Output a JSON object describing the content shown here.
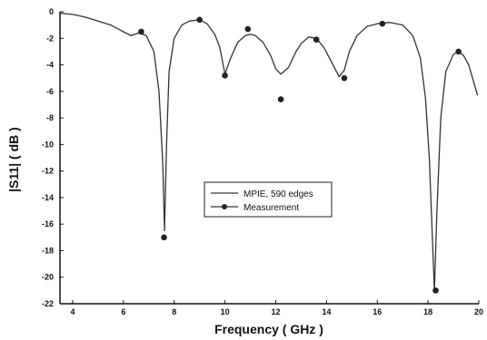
{
  "chart_data": {
    "type": "line",
    "title": "",
    "xlabel": "Frequency ( GHz )",
    "ylabel": "|S11| ( dB )",
    "xlim": [
      3.5,
      20
    ],
    "ylim": [
      -22,
      0
    ],
    "x_ticks": [
      4,
      6,
      8,
      10,
      12,
      14,
      16,
      18,
      20
    ],
    "y_ticks": [
      0,
      -2,
      -4,
      -6,
      -8,
      -10,
      -12,
      -14,
      -16,
      -18,
      -20,
      -22
    ],
    "grid": false,
    "legend_position": "center",
    "series": [
      {
        "name": "MPIE, 590 edges",
        "style": "line",
        "color": "#333333",
        "x": [
          3.5,
          4.0,
          4.5,
          5.0,
          5.5,
          6.0,
          6.3,
          6.6,
          6.9,
          7.2,
          7.4,
          7.55,
          7.62,
          7.7,
          7.8,
          8.0,
          8.3,
          8.6,
          9.0,
          9.3,
          9.6,
          9.8,
          10.0,
          10.2,
          10.5,
          10.8,
          11.0,
          11.2,
          11.5,
          11.8,
          12.0,
          12.2,
          12.5,
          12.8,
          13.0,
          13.3,
          13.6,
          13.9,
          14.2,
          14.5,
          14.7,
          14.9,
          15.2,
          15.6,
          16.0,
          16.5,
          17.0,
          17.4,
          17.7,
          17.9,
          18.05,
          18.15,
          18.25,
          18.35,
          18.5,
          18.7,
          19.0,
          19.2,
          19.4,
          19.6,
          19.8,
          19.95
        ],
        "y": [
          -0.1,
          -0.2,
          -0.4,
          -0.7,
          -1.0,
          -1.5,
          -1.8,
          -1.6,
          -1.8,
          -3.0,
          -6.0,
          -11.5,
          -16.5,
          -10.0,
          -4.5,
          -2.0,
          -1.0,
          -0.7,
          -0.6,
          -0.9,
          -1.7,
          -2.7,
          -4.7,
          -3.6,
          -2.3,
          -1.8,
          -1.7,
          -1.8,
          -2.3,
          -3.3,
          -4.3,
          -4.7,
          -4.2,
          -3.0,
          -2.4,
          -1.9,
          -2.0,
          -2.7,
          -3.8,
          -4.9,
          -4.4,
          -3.0,
          -1.8,
          -1.1,
          -0.9,
          -0.8,
          -1.0,
          -1.8,
          -3.5,
          -6.5,
          -11.0,
          -16.0,
          -21.0,
          -15.0,
          -8.0,
          -4.5,
          -3.2,
          -3.0,
          -3.3,
          -4.0,
          -5.3,
          -6.3
        ]
      },
      {
        "name": "Measurement",
        "style": "markers",
        "color": "#222222",
        "x": [
          6.7,
          7.6,
          9.0,
          10.0,
          10.9,
          12.2,
          13.6,
          14.7,
          16.2,
          18.3,
          19.2
        ],
        "y": [
          -1.5,
          -17.0,
          -0.6,
          -4.8,
          -1.3,
          -6.6,
          -2.1,
          -5.0,
          -0.9,
          -21.0,
          -3.0
        ]
      }
    ]
  }
}
